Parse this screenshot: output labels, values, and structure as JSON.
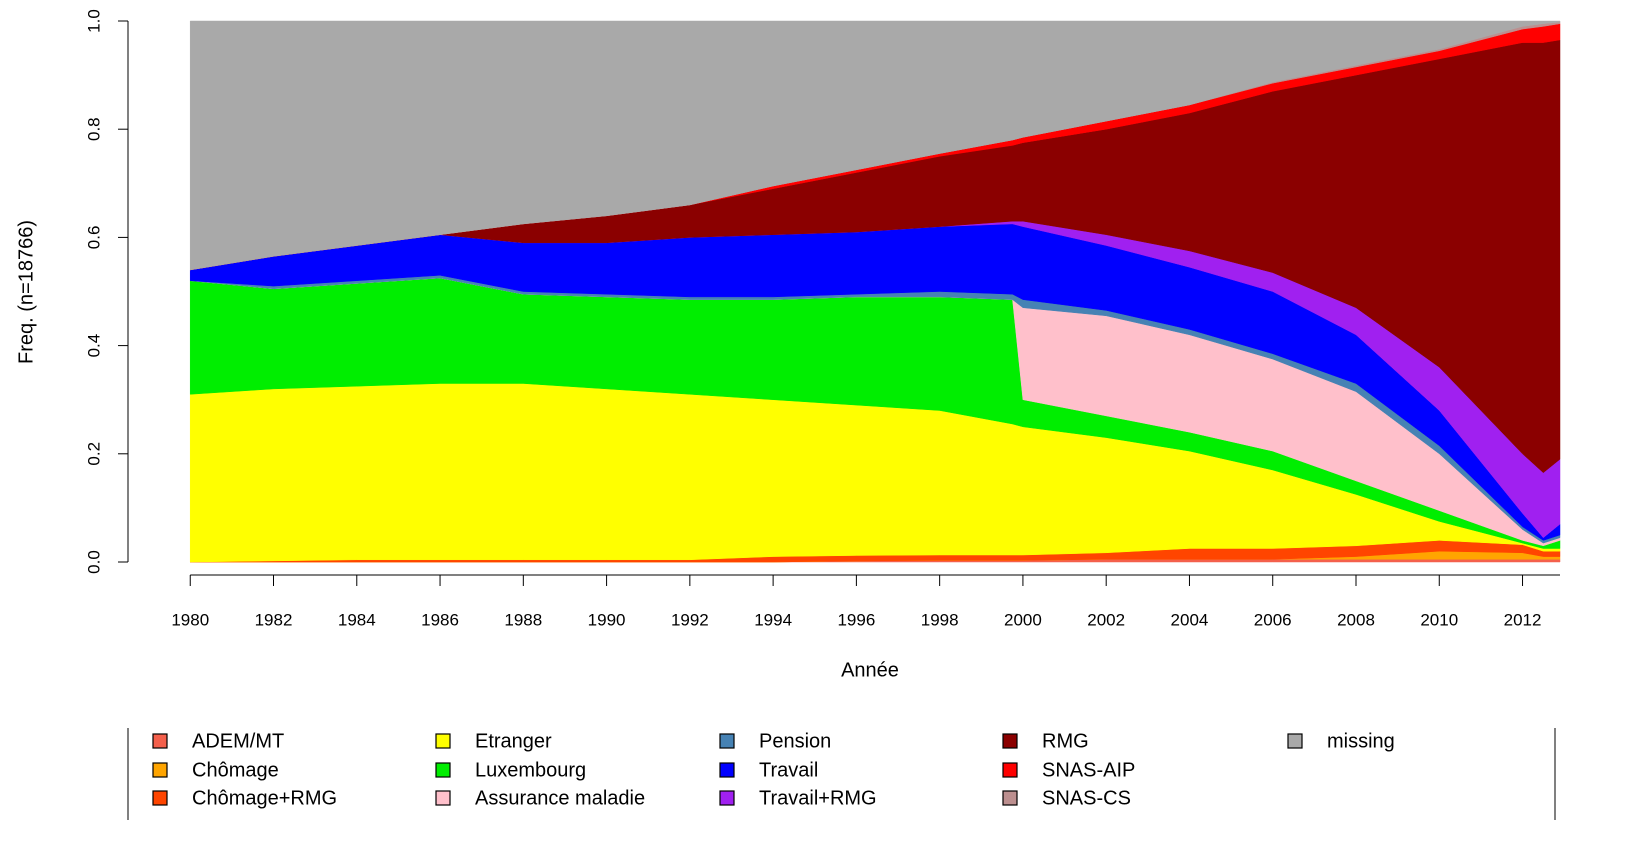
{
  "chart_data": {
    "type": "stacked_area",
    "xlabel": "Année",
    "ylabel": "Freq. (n=18766)",
    "x": [
      1980,
      1982,
      1984,
      1986,
      1988,
      1990,
      1992,
      1994,
      1996,
      1998,
      1999.75,
      2000,
      2002,
      2004,
      2006,
      2008,
      2010,
      2012,
      2012.5,
      2012.9
    ],
    "xlim": [
      1979.85,
      2012.9
    ],
    "xticks": [
      1980,
      1982,
      1984,
      1986,
      1988,
      1990,
      1992,
      1994,
      1996,
      1998,
      2000,
      2002,
      2004,
      2006,
      2008,
      2010,
      2012
    ],
    "ylim": [
      0,
      1
    ],
    "yticks": [
      {
        "value": 0,
        "label": "0.0"
      },
      0.2,
      0.4,
      0.6,
      0.8,
      {
        "value": 1,
        "label": "1.0"
      }
    ],
    "series": [
      {
        "name": "ADEM/MT",
        "color": "#f4604c",
        "values": [
          0,
          0,
          0,
          0,
          0,
          0,
          0,
          0,
          0.002,
          0.003,
          0.003,
          0.003,
          0.005,
          0.005,
          0.005,
          0.005,
          0.005,
          0.005,
          0.005,
          0.005
        ]
      },
      {
        "name": "Chômage",
        "color": "#ffa500",
        "values": [
          0,
          0,
          0,
          0,
          0,
          0,
          0,
          0,
          0,
          0,
          0,
          0,
          0,
          0,
          0,
          0.005,
          0.015,
          0.012,
          0.005,
          0.005
        ]
      },
      {
        "name": "Chômage+RMG",
        "color": "#ff4500",
        "values": [
          0,
          0.002,
          0.004,
          0.004,
          0.004,
          0.004,
          0.004,
          0.01,
          0.01,
          0.01,
          0.01,
          0.01,
          0.012,
          0.02,
          0.02,
          0.02,
          0.02,
          0.015,
          0.01,
          0.01
        ]
      },
      {
        "name": "Etranger",
        "color": "#ffff00",
        "values": [
          0.31,
          0.318,
          0.321,
          0.326,
          0.326,
          0.316,
          0.306,
          0.29,
          0.278,
          0.267,
          0.242,
          0.237,
          0.213,
          0.18,
          0.145,
          0.095,
          0.035,
          0.003,
          0.005,
          0.005
        ]
      },
      {
        "name": "Luxembourg",
        "color": "#00ee00",
        "values": [
          0.21,
          0.185,
          0.19,
          0.195,
          0.165,
          0.17,
          0.175,
          0.185,
          0.2,
          0.21,
          0.23,
          0.05,
          0.04,
          0.035,
          0.035,
          0.025,
          0.02,
          0.005,
          0.005,
          0.015
        ]
      },
      {
        "name": "Assurance maladie",
        "color": "#ffc0cb",
        "values": [
          0,
          0,
          0,
          0,
          0,
          0,
          0,
          0,
          0,
          0,
          0,
          0.17,
          0.185,
          0.18,
          0.17,
          0.165,
          0.105,
          0.02,
          0.005,
          0.005
        ]
      },
      {
        "name": "Pension",
        "color": "#4682b4",
        "values": [
          0,
          0.005,
          0.005,
          0.005,
          0.005,
          0.005,
          0.005,
          0.005,
          0.005,
          0.01,
          0.01,
          0.015,
          0.01,
          0.01,
          0.01,
          0.015,
          0.015,
          0.005,
          0.005,
          0.005
        ]
      },
      {
        "name": "Travail",
        "color": "#0000ff",
        "values": [
          0.02,
          0.055,
          0.065,
          0.075,
          0.09,
          0.095,
          0.11,
          0.115,
          0.115,
          0.12,
          0.13,
          0.135,
          0.12,
          0.115,
          0.115,
          0.09,
          0.065,
          0.025,
          0.005,
          0.02
        ]
      },
      {
        "name": "Travail+RMG",
        "color": "#a020f0",
        "values": [
          0,
          0,
          0,
          0,
          0,
          0,
          0,
          0,
          0,
          0,
          0.005,
          0.01,
          0.02,
          0.03,
          0.035,
          0.05,
          0.08,
          0.11,
          0.12,
          0.12
        ]
      },
      {
        "name": "RMG",
        "color": "#8b0000",
        "values": [
          0,
          0,
          0,
          0,
          0.035,
          0.05,
          0.06,
          0.085,
          0.11,
          0.13,
          0.14,
          0.145,
          0.195,
          0.255,
          0.335,
          0.43,
          0.57,
          0.76,
          0.795,
          0.775
        ]
      },
      {
        "name": "SNAS-AIP",
        "color": "#ff0000",
        "values": [
          0,
          0,
          0,
          0,
          0,
          0,
          0,
          0.005,
          0.005,
          0.005,
          0.01,
          0.01,
          0.015,
          0.015,
          0.015,
          0.015,
          0.015,
          0.025,
          0.03,
          0.03
        ]
      },
      {
        "name": "SNAS-CS",
        "color": "#bc8f8f",
        "values": [
          0,
          0,
          0,
          0,
          0,
          0,
          0,
          0,
          0,
          0,
          0,
          0,
          0,
          0,
          0.002,
          0.003,
          0.003,
          0.005,
          0.005,
          0.003
        ]
      },
      {
        "name": "missing",
        "color": "#a9a9a9",
        "values": [
          0.46,
          0.435,
          0.415,
          0.395,
          0.375,
          0.36,
          0.34,
          0.305,
          0.275,
          0.245,
          0.22,
          0.215,
          0.185,
          0.155,
          0.113,
          0.082,
          0.052,
          0.01,
          0.005,
          0.002
        ]
      }
    ]
  }
}
